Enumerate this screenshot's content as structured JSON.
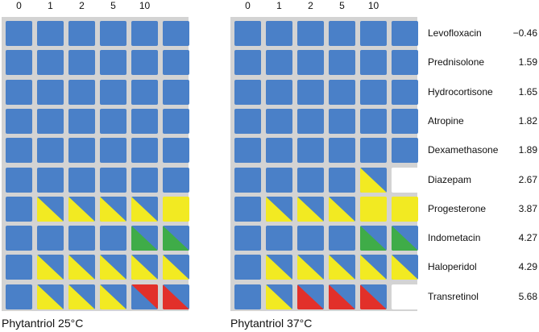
{
  "colors": {
    "blue": "#4a80c8",
    "yellow": "#f2ea22",
    "green": "#3fac48",
    "red": "#e2302a",
    "white": "#ffffff"
  },
  "column_headers": [
    "0",
    "1",
    "2",
    "5",
    "10",
    ""
  ],
  "rows": [
    {
      "name": "Levofloxacin",
      "value": "−0.46"
    },
    {
      "name": "Prednisolone",
      "value": "1.59"
    },
    {
      "name": "Hydrocortisone",
      "value": "1.65"
    },
    {
      "name": "Atropine",
      "value": "1.82"
    },
    {
      "name": "Dexamethasone",
      "value": "1.89"
    },
    {
      "name": "Diazepam",
      "value": "2.67"
    },
    {
      "name": "Progesterone",
      "value": "3.87"
    },
    {
      "name": "Indometacin",
      "value": "4.27"
    },
    {
      "name": "Haloperidol",
      "value": "4.29"
    },
    {
      "name": "Transretinol",
      "value": "5.68"
    }
  ],
  "panels": [
    {
      "caption": "Phytantriol 25°C",
      "cells": [
        [
          "B",
          "B",
          "B",
          "B",
          "B",
          "B"
        ],
        [
          "B",
          "B",
          "B",
          "B",
          "B",
          "B"
        ],
        [
          "B",
          "B",
          "B",
          "B",
          "B",
          "B"
        ],
        [
          "B",
          "B",
          "B",
          "B",
          "B",
          "B"
        ],
        [
          "B",
          "B",
          "B",
          "B",
          "B",
          "B"
        ],
        [
          "B",
          "B",
          "B",
          "B",
          "B",
          "B"
        ],
        [
          "B",
          "BY",
          "BY",
          "BY",
          "BY",
          "Y"
        ],
        [
          "B",
          "B",
          "B",
          "B",
          "BG",
          "BG"
        ],
        [
          "B",
          "BY",
          "BY",
          "BY",
          "BY",
          "BY"
        ],
        [
          "B",
          "BY",
          "BY",
          "BY",
          "RB",
          "BR"
        ]
      ]
    },
    {
      "caption": "Phytantriol 37°C",
      "cells": [
        [
          "B",
          "B",
          "B",
          "B",
          "B",
          "B"
        ],
        [
          "B",
          "B",
          "B",
          "B",
          "B",
          "B"
        ],
        [
          "B",
          "B",
          "B",
          "B",
          "B",
          "B"
        ],
        [
          "B",
          "B",
          "B",
          "B",
          "B",
          "B"
        ],
        [
          "B",
          "B",
          "B",
          "B",
          "B",
          "B"
        ],
        [
          "B",
          "B",
          "B",
          "B",
          "BY",
          "W"
        ],
        [
          "B",
          "BY",
          "BY",
          "BY",
          "Y",
          "Y"
        ],
        [
          "B",
          "B",
          "B",
          "B",
          "BG",
          "BG"
        ],
        [
          "B",
          "BY",
          "BY",
          "BY",
          "BY",
          "BY"
        ],
        [
          "B",
          "BY",
          "BR",
          "BR",
          "BR",
          "W"
        ]
      ]
    }
  ]
}
